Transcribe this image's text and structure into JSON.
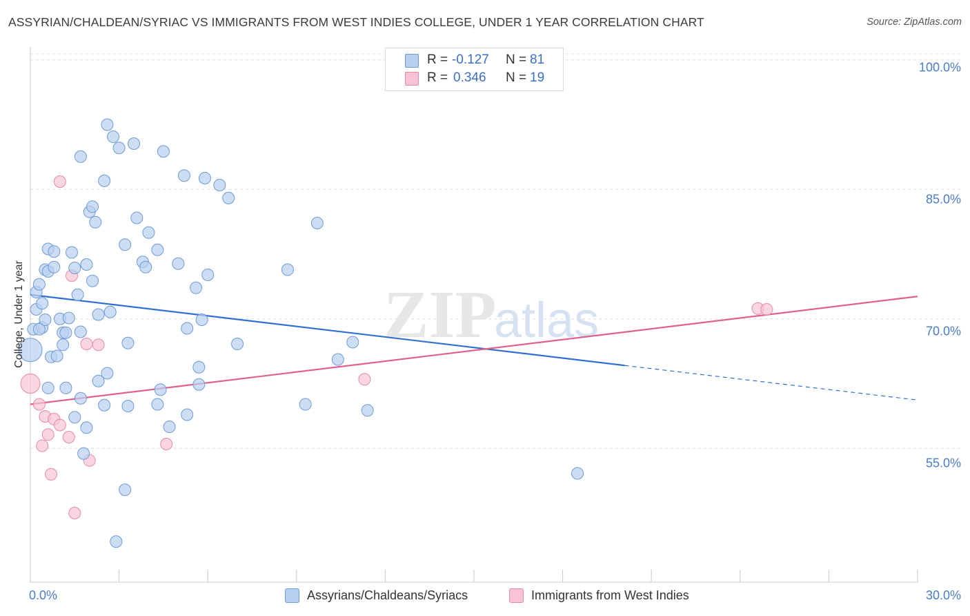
{
  "header": {
    "title": "ASSYRIAN/CHALDEAN/SYRIAC VS IMMIGRANTS FROM WEST INDIES COLLEGE, UNDER 1 YEAR CORRELATION CHART",
    "source": "Source: ZipAtlas.com"
  },
  "watermark": {
    "zip": "ZIP",
    "atlas": "atlas"
  },
  "legend": {
    "series1": {
      "r_label": "R =",
      "r_value": "-0.127",
      "n_label": "N =",
      "n_value": "81"
    },
    "series2": {
      "r_label": "R =",
      "r_value": "0.346",
      "n_label": "N =",
      "n_value": "19"
    }
  },
  "bottom_legend": {
    "series1": "Assyrians/Chaldeans/Syriacs",
    "series2": "Immigrants from West Indies"
  },
  "colors": {
    "blue_fill": "#b8d0f0",
    "blue_stroke": "#6d9ad6",
    "blue_line": "#2f6fd0",
    "pink_fill": "#f8c4d3",
    "pink_stroke": "#e58aa6",
    "pink_line": "#e0608c",
    "tick_text": "#4a7cc7"
  },
  "chart_data": {
    "type": "scatter",
    "title": "ASSYRIAN/CHALDEAN/SYRIAC VS IMMIGRANTS FROM WEST INDIES COLLEGE, UNDER 1 YEAR CORRELATION CHART",
    "xlabel": "",
    "ylabel": "College, Under 1 year",
    "xlim": [
      0,
      30
    ],
    "ylim": [
      39.5,
      101.5
    ],
    "x_ticks": [
      0,
      3,
      6,
      9,
      12,
      15,
      18,
      21,
      24,
      27,
      30
    ],
    "x_tick_labels": [
      "0.0%",
      "30.0%"
    ],
    "y_ticks": [
      55,
      70,
      85,
      100
    ],
    "y_tick_labels": [
      "55.0%",
      "70.0%",
      "85.0%",
      "100.0%"
    ],
    "grid": true,
    "legend_position": "top-center",
    "series": [
      {
        "name": "Assyrians/Chaldeans/Syriacs",
        "color": "#6d9ad6",
        "r": -0.127,
        "n": 81,
        "trend": {
          "x": [
            0,
            20.1
          ],
          "y": [
            72.8,
            64.6
          ],
          "dashed_to": [
            30,
            60.6
          ]
        },
        "points": [
          [
            0.0,
            66.4,
            3
          ],
          [
            0.1,
            68.8,
            1
          ],
          [
            0.2,
            73.1,
            1
          ],
          [
            0.2,
            71.1,
            1
          ],
          [
            0.3,
            74.0,
            1
          ],
          [
            0.4,
            71.8,
            1
          ],
          [
            0.4,
            69.0,
            1
          ],
          [
            0.5,
            69.9,
            1
          ],
          [
            0.5,
            75.7,
            1
          ],
          [
            0.6,
            78.1,
            1
          ],
          [
            0.6,
            62.0,
            1
          ],
          [
            0.6,
            75.5,
            1
          ],
          [
            0.7,
            65.6,
            1
          ],
          [
            0.8,
            77.8,
            1
          ],
          [
            0.8,
            76.0,
            1
          ],
          [
            0.9,
            65.7,
            1
          ],
          [
            1.0,
            70.0,
            1
          ],
          [
            1.1,
            67.0,
            1
          ],
          [
            1.1,
            68.4,
            1
          ],
          [
            1.2,
            68.4,
            1
          ],
          [
            1.2,
            62.0,
            1
          ],
          [
            1.3,
            70.1,
            1
          ],
          [
            1.4,
            77.7,
            1
          ],
          [
            1.5,
            58.6,
            1
          ],
          [
            1.5,
            75.9,
            1
          ],
          [
            1.6,
            72.8,
            1
          ],
          [
            1.7,
            88.8,
            1
          ],
          [
            1.7,
            68.5,
            1
          ],
          [
            1.7,
            60.8,
            1
          ],
          [
            1.8,
            54.4,
            1
          ],
          [
            1.9,
            76.3,
            1
          ],
          [
            1.9,
            57.4,
            1
          ],
          [
            2.0,
            82.4,
            1
          ],
          [
            2.1,
            74.4,
            1
          ],
          [
            2.1,
            83.0,
            1
          ],
          [
            2.2,
            81.2,
            1
          ],
          [
            2.3,
            70.5,
            1
          ],
          [
            2.3,
            62.8,
            1
          ],
          [
            2.5,
            60.0,
            1
          ],
          [
            2.5,
            86.0,
            1
          ],
          [
            2.6,
            63.7,
            1
          ],
          [
            2.6,
            92.5,
            1
          ],
          [
            2.7,
            70.8,
            1
          ],
          [
            2.8,
            91.1,
            1
          ],
          [
            2.9,
            44.2,
            1
          ],
          [
            3.0,
            89.8,
            1
          ],
          [
            3.2,
            78.6,
            1
          ],
          [
            3.2,
            50.2,
            1
          ],
          [
            3.3,
            67.2,
            1
          ],
          [
            3.3,
            59.9,
            1
          ],
          [
            3.5,
            90.3,
            1
          ],
          [
            3.6,
            81.7,
            1
          ],
          [
            3.8,
            76.6,
            1
          ],
          [
            3.9,
            76.0,
            1
          ],
          [
            4.0,
            80.0,
            1
          ],
          [
            4.3,
            78.0,
            1
          ],
          [
            4.3,
            60.1,
            1
          ],
          [
            4.4,
            61.8,
            1
          ],
          [
            4.5,
            89.4,
            1
          ],
          [
            4.7,
            57.5,
            1
          ],
          [
            5.0,
            76.4,
            1
          ],
          [
            5.2,
            86.6,
            1
          ],
          [
            5.3,
            68.9,
            1
          ],
          [
            5.3,
            58.9,
            1
          ],
          [
            5.6,
            73.6,
            1
          ],
          [
            5.7,
            64.4,
            1
          ],
          [
            5.7,
            62.4,
            1
          ],
          [
            5.8,
            69.9,
            1
          ],
          [
            5.9,
            86.3,
            1
          ],
          [
            6.0,
            75.1,
            1
          ],
          [
            6.4,
            85.5,
            1
          ],
          [
            6.7,
            84.0,
            1
          ],
          [
            7.0,
            67.1,
            1
          ],
          [
            8.7,
            75.7,
            1
          ],
          [
            9.3,
            60.1,
            1
          ],
          [
            9.7,
            81.1,
            1
          ],
          [
            10.4,
            65.3,
            1
          ],
          [
            10.9,
            67.3,
            1
          ],
          [
            11.4,
            59.4,
            1
          ],
          [
            18.5,
            52.1,
            1
          ],
          [
            0.3,
            68.8,
            1
          ]
        ]
      },
      {
        "name": "Immigrants from West Indies",
        "color": "#e58aa6",
        "r": 0.346,
        "n": 19,
        "trend": {
          "x": [
            0,
            30
          ],
          "y": [
            60.1,
            72.6
          ]
        },
        "points": [
          [
            0.0,
            62.5,
            2
          ],
          [
            0.3,
            60.1,
            1
          ],
          [
            0.4,
            55.3,
            1
          ],
          [
            0.5,
            58.7,
            1
          ],
          [
            0.6,
            56.6,
            1
          ],
          [
            0.7,
            52.0,
            1
          ],
          [
            0.8,
            58.4,
            1
          ],
          [
            1.0,
            57.7,
            1
          ],
          [
            1.0,
            85.9,
            1
          ],
          [
            1.3,
            56.3,
            1
          ],
          [
            1.4,
            75.0,
            1
          ],
          [
            1.5,
            47.5,
            1
          ],
          [
            1.9,
            67.1,
            1
          ],
          [
            2.0,
            53.6,
            1
          ],
          [
            2.3,
            67.0,
            1
          ],
          [
            4.6,
            55.5,
            1
          ],
          [
            11.3,
            63.0,
            1
          ],
          [
            24.6,
            71.2,
            1
          ],
          [
            24.9,
            71.1,
            1
          ]
        ]
      }
    ]
  }
}
